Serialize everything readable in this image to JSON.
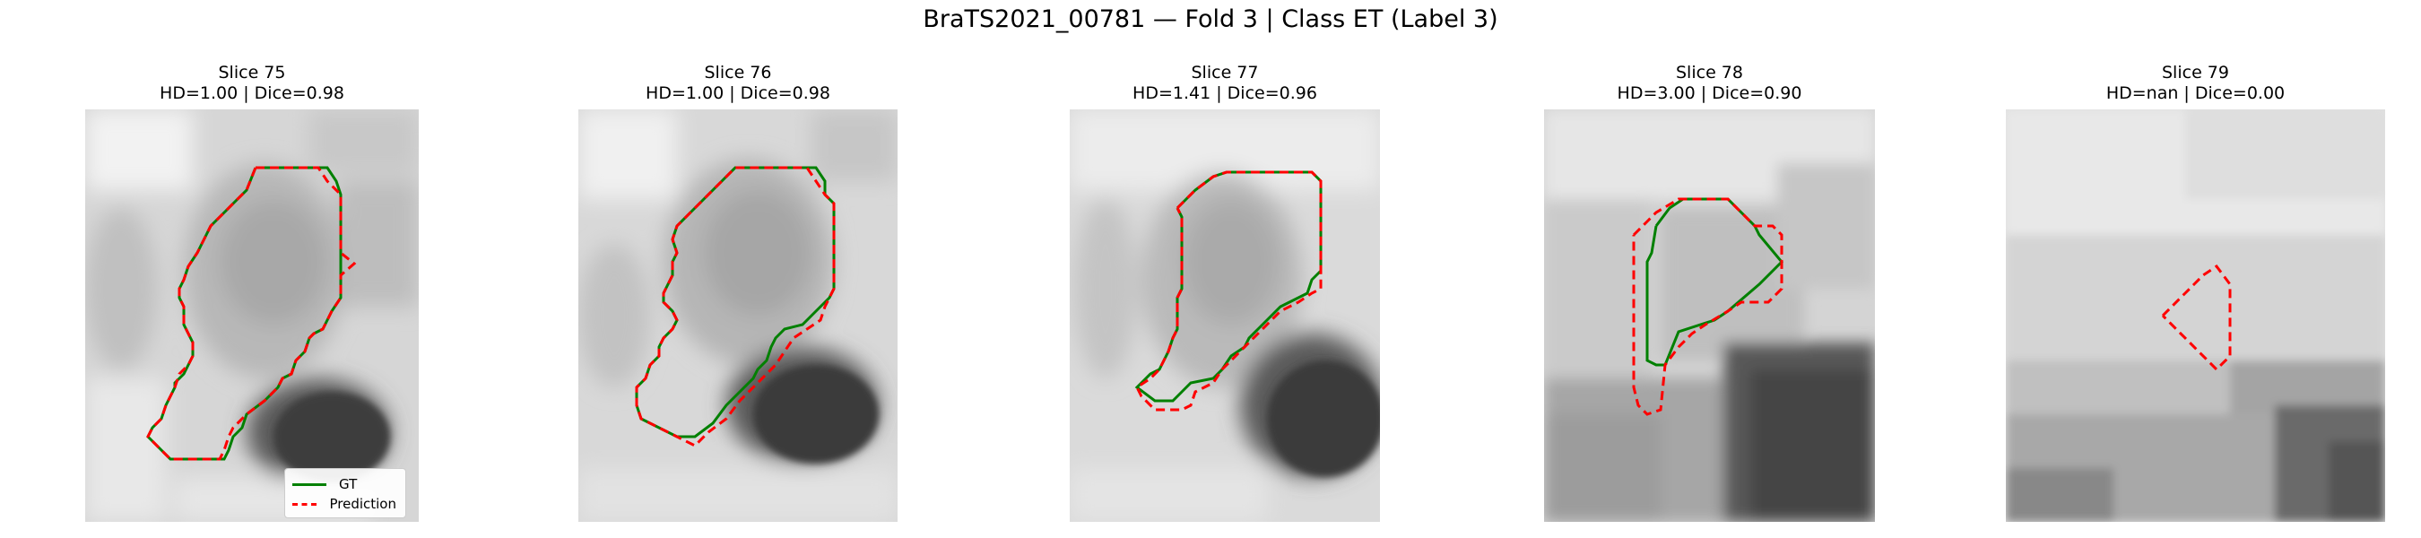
{
  "title": "BraTS2021_00781 — Fold 3 | Class ET (Label 3)",
  "colors": {
    "gt": "#008000",
    "prediction": "#ff0000"
  },
  "legend": {
    "gt_label": "GT",
    "prediction_label": "Prediction",
    "placement": "lower-right of first panel"
  },
  "panels": [
    {
      "slice_label": "Slice 75",
      "metrics_label": "HD=1.00 | Dice=0.98",
      "hd": 1.0,
      "dice": 0.98
    },
    {
      "slice_label": "Slice 76",
      "metrics_label": "HD=1.00 | Dice=0.98",
      "hd": 1.0,
      "dice": 0.98
    },
    {
      "slice_label": "Slice 77",
      "metrics_label": "HD=1.41 | Dice=0.96",
      "hd": 1.41,
      "dice": 0.96
    },
    {
      "slice_label": "Slice 78",
      "metrics_label": "HD=3.00 | Dice=0.90",
      "hd": 3.0,
      "dice": 0.9
    },
    {
      "slice_label": "Slice 79",
      "metrics_label": "HD=nan | Dice=0.00",
      "hd": "nan",
      "dice": 0.0
    }
  ]
}
